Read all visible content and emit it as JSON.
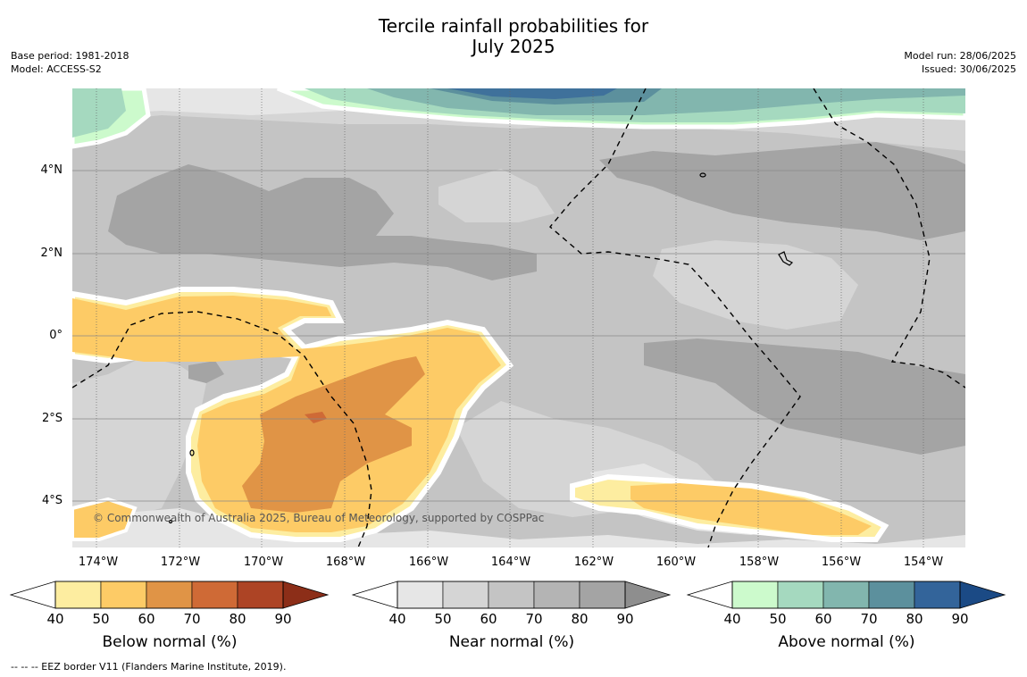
{
  "title": "Tercile rainfall probabilities for\nJuly 2025",
  "meta_left": {
    "base_period": "Base period: 1981-2018",
    "model": "Model: ACCESS-S2"
  },
  "meta_right": {
    "model_run": "Model run: 28/06/2025",
    "issued": "Issued: 30/06/2025"
  },
  "map": {
    "x_ticks": [
      "174°W",
      "172°W",
      "170°W",
      "168°W",
      "166°W",
      "164°W",
      "162°W",
      "160°W",
      "158°W",
      "156°W",
      "154°W"
    ],
    "y_ticks": [
      "4°N",
      "2°N",
      "0°",
      "2°S",
      "4°S"
    ],
    "copyright": "© Commonwealth of Australia 2025, Bureau of Meteorology, supported by COSPPac"
  },
  "colorbars": [
    {
      "title": "Below normal (%)",
      "labels": [
        "40",
        "50",
        "60",
        "70",
        "80",
        "90"
      ],
      "colors": [
        "#fdeda0",
        "#fdcb66",
        "#e09446",
        "#cf6a36",
        "#ad4425",
        "#8c2e18"
      ]
    },
    {
      "title": "Near normal (%)",
      "labels": [
        "40",
        "50",
        "60",
        "70",
        "80",
        "90"
      ],
      "colors": [
        "#e6e6e6",
        "#d5d5d5",
        "#c4c4c4",
        "#b4b4b4",
        "#a4a4a4",
        "#8e8e8e"
      ]
    },
    {
      "title": "Above normal (%)",
      "labels": [
        "40",
        "50",
        "60",
        "70",
        "80",
        "90"
      ],
      "colors": [
        "#ccfacc",
        "#a5d9bf",
        "#82b6ae",
        "#5c909d",
        "#33649a",
        "#1b4a85"
      ]
    }
  ],
  "footnote": "--  --  -- EEZ border V11 (Flanders Marine Institute, 2019)."
}
